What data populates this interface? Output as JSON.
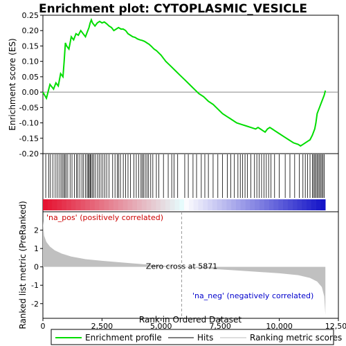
{
  "chart_data": {
    "type": "line",
    "title": "Enrichment plot: CYTOPLASMIC_VESICLE",
    "top_panel": {
      "ylabel": "Enrichment score (ES)",
      "ylim": [
        -0.2,
        0.25
      ],
      "yticks": [
        "-0.20",
        "-0.15",
        "-0.10",
        "-0.05",
        "0.00",
        "0.05",
        "0.10",
        "0.15",
        "0.20",
        "0.25"
      ],
      "ytick_values": [
        -0.2,
        -0.15,
        -0.1,
        -0.05,
        0.0,
        0.05,
        0.1,
        0.15,
        0.2,
        0.25
      ],
      "series": [
        {
          "name": "Enrichment profile",
          "color": "#00dd00",
          "x": [
            0,
            150,
            300,
            450,
            550,
            650,
            750,
            850,
            900,
            950,
            1000,
            1100,
            1200,
            1300,
            1400,
            1500,
            1600,
            1700,
            1800,
            1900,
            1950,
            2000,
            2050,
            2100,
            2200,
            2300,
            2400,
            2500,
            2600,
            2700,
            2800,
            2900,
            3000,
            3100,
            3200,
            3300,
            3400,
            3500,
            3600,
            3700,
            3800,
            3900,
            4000,
            4100,
            4200,
            4300,
            4400,
            4500,
            4600,
            4700,
            4800,
            5000,
            5200,
            5400,
            5600,
            5800,
            6000,
            6200,
            6400,
            6600,
            6800,
            7000,
            7200,
            7400,
            7600,
            7800,
            7900,
            8000,
            8200,
            8400,
            8600,
            8800,
            9000,
            9100,
            9200,
            9300,
            9400,
            9500,
            9600,
            9700,
            9800,
            10000,
            10200,
            10400,
            10500,
            10600,
            10800,
            10900,
            11000,
            11100,
            11200,
            11300,
            11400,
            11500,
            11550,
            11600,
            11700,
            11800,
            11900,
            11950
          ],
          "y": [
            0.0,
            -0.02,
            0.025,
            0.01,
            0.03,
            0.02,
            0.06,
            0.05,
            0.1,
            0.16,
            0.15,
            0.14,
            0.18,
            0.17,
            0.19,
            0.185,
            0.2,
            0.19,
            0.18,
            0.2,
            0.21,
            0.225,
            0.235,
            0.225,
            0.215,
            0.225,
            0.23,
            0.225,
            0.228,
            0.222,
            0.215,
            0.21,
            0.2,
            0.205,
            0.21,
            0.205,
            0.205,
            0.2,
            0.19,
            0.185,
            0.18,
            0.178,
            0.173,
            0.17,
            0.168,
            0.165,
            0.16,
            0.155,
            0.148,
            0.14,
            0.135,
            0.12,
            0.1,
            0.085,
            0.07,
            0.055,
            0.04,
            0.025,
            0.01,
            -0.005,
            -0.015,
            -0.03,
            -0.04,
            -0.055,
            -0.07,
            -0.08,
            -0.085,
            -0.09,
            -0.1,
            -0.105,
            -0.11,
            -0.115,
            -0.12,
            -0.115,
            -0.12,
            -0.125,
            -0.13,
            -0.12,
            -0.115,
            -0.12,
            -0.125,
            -0.135,
            -0.145,
            -0.155,
            -0.16,
            -0.165,
            -0.17,
            -0.175,
            -0.17,
            -0.165,
            -0.16,
            -0.155,
            -0.14,
            -0.12,
            -0.1,
            -0.07,
            -0.05,
            -0.03,
            -0.01,
            0.005
          ]
        }
      ]
    },
    "hits_panel": {
      "hit_positions": [
        120,
        250,
        320,
        420,
        520,
        600,
        680,
        760,
        820,
        880,
        930,
        980,
        1050,
        1150,
        1230,
        1330,
        1420,
        1480,
        1560,
        1650,
        1720,
        1800,
        1870,
        1920,
        1960,
        2000,
        2040,
        2090,
        2150,
        2220,
        2310,
        2380,
        2460,
        2540,
        2620,
        2700,
        2800,
        2950,
        3050,
        3150,
        3200,
        3280,
        3400,
        3500,
        3600,
        3700,
        3850,
        3950,
        4050,
        4150,
        4200,
        4260,
        4330,
        4400,
        4470,
        4560,
        4650,
        4800,
        4900,
        5100,
        5300,
        5450,
        5550,
        5700,
        6000,
        6150,
        6350,
        6500,
        6700,
        6850,
        7000,
        7200,
        7400,
        7600,
        7800,
        7950,
        8100,
        8250,
        8350,
        8450,
        8550,
        8650,
        8800,
        8950,
        9050,
        9150,
        9250,
        9350,
        9450,
        9550,
        9650,
        9800,
        10000,
        10250,
        10450,
        10650,
        10850,
        11000,
        11100,
        11200,
        11300,
        11400,
        11450,
        11500,
        11550,
        11600,
        11650,
        11700,
        11750,
        11800,
        11850,
        11900
      ]
    },
    "bottom_panel": {
      "ylabel": "Ranked list metric (PreRanked)",
      "xlabel": "Rank in Ordered Dataset",
      "ylim": [
        -2.8,
        3.0
      ],
      "yticks": [
        "-2",
        "-1",
        "0",
        "1",
        "2"
      ],
      "ytick_values": [
        -2,
        -1,
        0,
        1,
        2
      ],
      "metric_x": [
        0,
        50,
        150,
        300,
        500,
        800,
        1200,
        1800,
        2500,
        3500,
        4500,
        5871,
        7000,
        8000,
        9000,
        10000,
        10800,
        11300,
        11600,
        11800,
        11900,
        11950
      ],
      "metric_y": [
        2.5,
        1.7,
        1.35,
        1.1,
        0.9,
        0.72,
        0.56,
        0.42,
        0.33,
        0.22,
        0.12,
        0.0,
        -0.1,
        -0.18,
        -0.26,
        -0.35,
        -0.45,
        -0.6,
        -0.8,
        -1.1,
        -1.6,
        -2.6
      ],
      "zero_cross_label": "Zero cross at 5871",
      "zero_cross": 5871,
      "pos_label": "'na_pos' (positively correlated)",
      "neg_label": "'na_neg' (negatively correlated)"
    },
    "xlim": [
      0,
      12000
    ],
    "xticks": [
      "0",
      "2,500",
      "5,000",
      "7,500",
      "10,000",
      "12,500"
    ],
    "xtick_values": [
      0,
      2500,
      5000,
      7500,
      10000,
      12500
    ],
    "legend": {
      "placement": "bottom",
      "items": [
        "Enrichment profile",
        "Hits",
        "Ranking metric scores"
      ]
    }
  }
}
